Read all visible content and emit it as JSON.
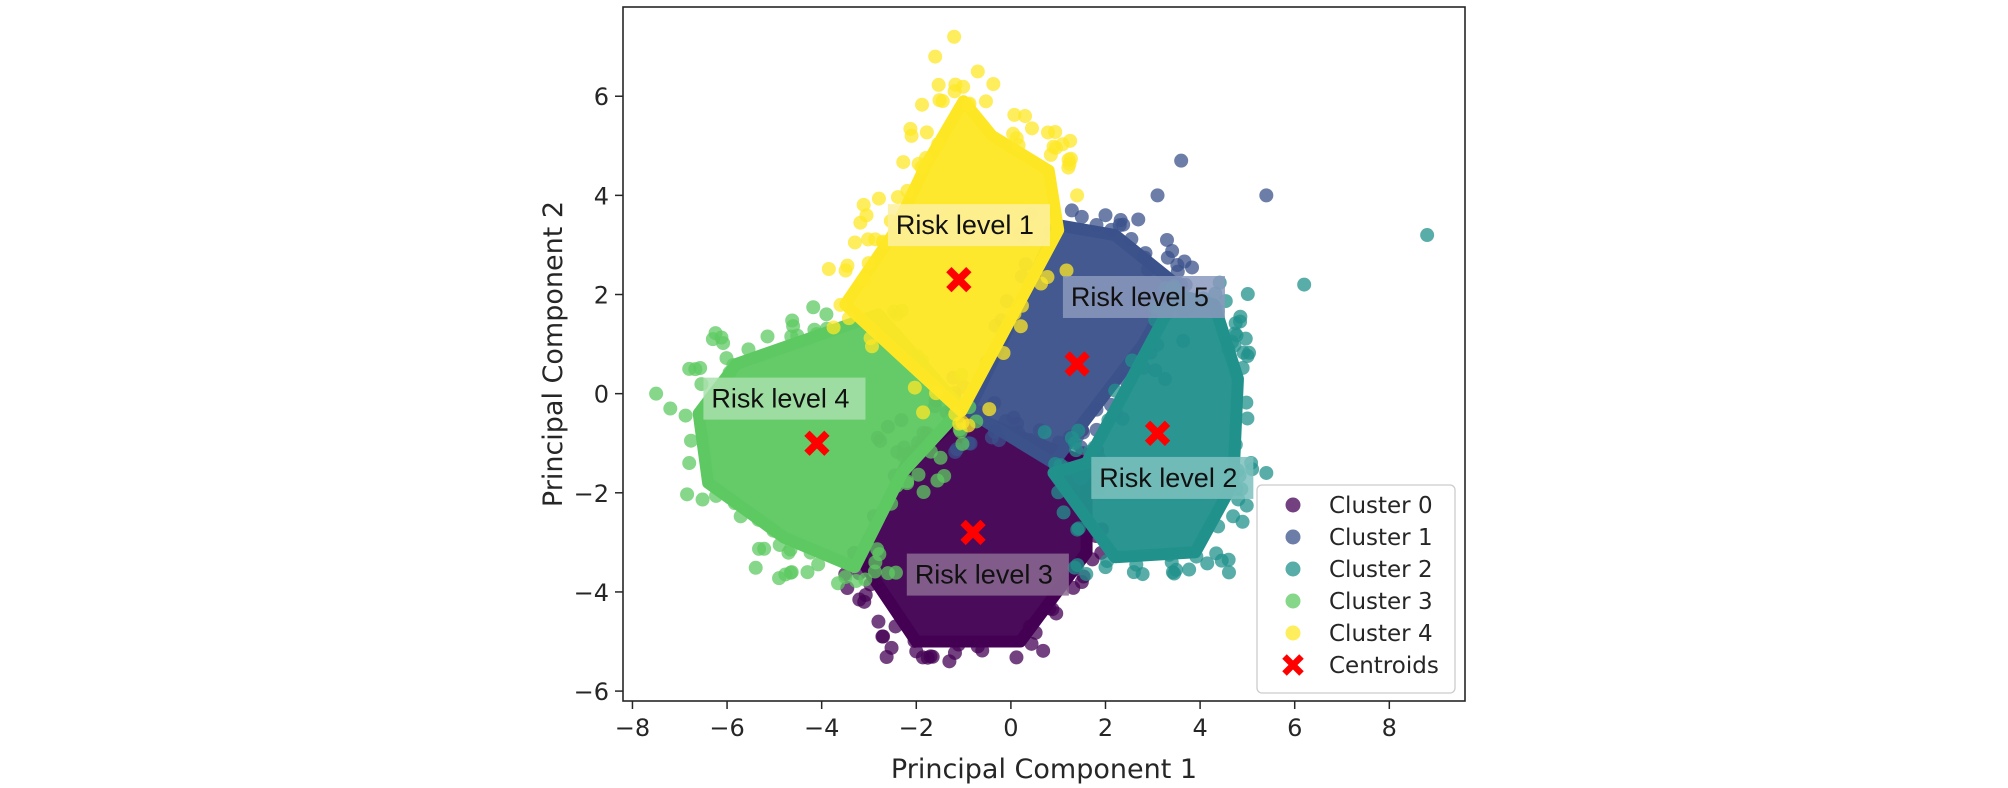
{
  "chart_data": {
    "type": "scatter",
    "xlabel": "Principal Component 1",
    "ylabel": "Principal Component 2",
    "xlim": [
      -8.2,
      9.6
    ],
    "ylim": [
      -6.2,
      7.8
    ],
    "xticks": [
      -8,
      -6,
      -4,
      -2,
      0,
      2,
      4,
      6,
      8
    ],
    "yticks": [
      -6,
      -4,
      -2,
      0,
      2,
      4,
      6
    ],
    "xtick_labels": [
      "−8",
      "−6",
      "−4",
      "−2",
      "0",
      "2",
      "4",
      "6",
      "8"
    ],
    "ytick_labels": [
      "−6",
      "−4",
      "−2",
      "0",
      "2",
      "4",
      "6"
    ],
    "grid": false,
    "legend_position": "bottom-right",
    "series": [
      {
        "name": "Cluster 0",
        "color": "#440154",
        "region": [
          [
            -1.0,
            -0.4
          ],
          [
            1.6,
            -1.4
          ],
          [
            1.6,
            -3.2
          ],
          [
            0.2,
            -5.0
          ],
          [
            -2.0,
            -5.0
          ],
          [
            -3.2,
            -3.3
          ],
          [
            -2.2,
            -1.4
          ]
        ],
        "outliers": [
          [
            -2.0,
            -5.2
          ],
          [
            -1.3,
            -5.4
          ],
          [
            -0.7,
            -5.1
          ],
          [
            0.4,
            -4.7
          ],
          [
            -2.8,
            -4.6
          ],
          [
            -3.1,
            -4.2
          ],
          [
            1.5,
            -3.8
          ],
          [
            -1.7,
            -5.3
          ]
        ]
      },
      {
        "name": "Cluster 1",
        "color": "#3b528b",
        "region": [
          [
            -0.9,
            -0.35
          ],
          [
            1.0,
            3.4
          ],
          [
            2.2,
            3.2
          ],
          [
            3.5,
            2.2
          ],
          [
            2.8,
            1.0
          ],
          [
            1.6,
            -0.5
          ],
          [
            0.9,
            -1.4
          ]
        ],
        "outliers": [
          [
            3.6,
            4.7
          ],
          [
            5.4,
            4.0
          ],
          [
            3.1,
            4.0
          ],
          [
            2.0,
            3.6
          ],
          [
            3.3,
            3.1
          ],
          [
            2.3,
            3.4
          ],
          [
            3.6,
            2.2
          ],
          [
            2.9,
            2.5
          ]
        ]
      },
      {
        "name": "Cluster 2",
        "color": "#21918c",
        "region": [
          [
            1.6,
            -1.4
          ],
          [
            3.5,
            2.0
          ],
          [
            4.3,
            1.8
          ],
          [
            4.8,
            0.3
          ],
          [
            4.7,
            -1.8
          ],
          [
            3.9,
            -3.2
          ],
          [
            2.2,
            -3.3
          ],
          [
            0.9,
            -1.6
          ]
        ],
        "outliers": [
          [
            8.8,
            3.2
          ],
          [
            6.2,
            2.2
          ],
          [
            5.0,
            -0.5
          ],
          [
            5.4,
            -1.6
          ],
          [
            2.0,
            -3.5
          ],
          [
            2.6,
            -3.6
          ],
          [
            3.4,
            -3.4
          ],
          [
            4.6,
            0.9
          ]
        ]
      },
      {
        "name": "Cluster 3",
        "color": "#5ec962",
        "region": [
          [
            -1.05,
            -0.3
          ],
          [
            -2.8,
            1.6
          ],
          [
            -4.0,
            1.2
          ],
          [
            -5.8,
            0.6
          ],
          [
            -6.6,
            -0.4
          ],
          [
            -6.4,
            -1.8
          ],
          [
            -4.8,
            -2.9
          ],
          [
            -3.3,
            -3.5
          ],
          [
            -2.3,
            -1.6
          ]
        ],
        "outliers": [
          [
            -7.5,
            0.0
          ],
          [
            -6.8,
            0.5
          ],
          [
            -6.3,
            1.1
          ],
          [
            -7.2,
            -0.3
          ],
          [
            -4.3,
            -3.6
          ],
          [
            -3.5,
            -3.7
          ],
          [
            -6.8,
            -1.4
          ],
          [
            -3.9,
            1.6
          ]
        ]
      },
      {
        "name": "Cluster 4",
        "color": "#fde725",
        "region": [
          [
            -1.05,
            -0.35
          ],
          [
            1.0,
            3.3
          ],
          [
            0.8,
            4.5
          ],
          [
            -0.4,
            5.2
          ],
          [
            -1.0,
            5.9
          ],
          [
            -1.8,
            4.6
          ],
          [
            -2.5,
            3.2
          ],
          [
            -3.5,
            1.8
          ]
        ],
        "outliers": [
          [
            -1.2,
            7.2
          ],
          [
            -0.7,
            6.5
          ],
          [
            -1.6,
            6.8
          ],
          [
            0.3,
            5.6
          ],
          [
            -2.1,
            5.2
          ],
          [
            1.4,
            4.0
          ],
          [
            -3.1,
            2.3
          ],
          [
            -2.3,
            3.1
          ]
        ]
      }
    ],
    "centroids": {
      "name": "Centroids",
      "color": "#ff0000",
      "points": [
        [
          -0.8,
          -2.8
        ],
        [
          1.4,
          0.6
        ],
        [
          3.1,
          -0.8
        ],
        [
          -4.1,
          -1.0
        ],
        [
          -1.1,
          2.3
        ]
      ]
    },
    "annotations": [
      {
        "text": "Risk level 1",
        "x": -2.6,
        "y": 3.4,
        "box_color": "#fdf09e"
      },
      {
        "text": "Risk level 5",
        "x": 1.1,
        "y": 1.95,
        "box_color": "#8a99bd"
      },
      {
        "text": "Risk level 4",
        "x": -6.5,
        "y": -0.1,
        "box_color": "#a8e0ac"
      },
      {
        "text": "Risk level 2",
        "x": 1.7,
        "y": -1.7,
        "box_color": "#7cc1be"
      },
      {
        "text": "Risk level 3",
        "x": -2.2,
        "y": -3.65,
        "box_color": "#8b6b93"
      }
    ]
  }
}
